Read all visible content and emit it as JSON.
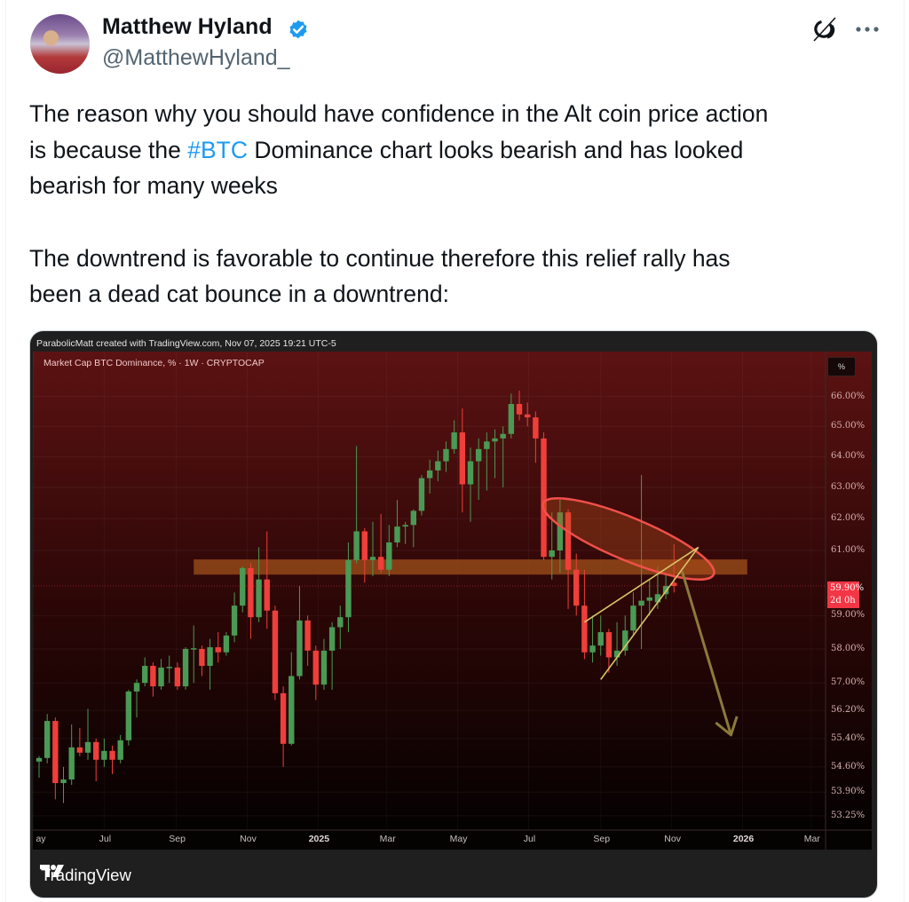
{
  "author": {
    "name": "Matthew Hyland",
    "handle": "@MatthewHyland_",
    "verified": true,
    "badge_color": "#1d9bf0"
  },
  "header_icons": [
    "grok-icon",
    "more-options-icon"
  ],
  "tweet": {
    "lines": [
      {
        "text": "The reason why you should have confidence in the Alt coin price action"
      },
      {
        "before": "is because the ",
        "hashtag": "#BTC",
        "after": " Dominance chart looks bearish and has looked"
      },
      {
        "text": "bearish for many weeks"
      },
      {
        "text": "The downtrend is favorable to continue therefore this relief rally has"
      },
      {
        "text": "been a dead cat bounce in a downtrend:"
      }
    ],
    "hashtag_color": "#1d9bf0"
  },
  "chart_image": {
    "attribution": "ParabolicMatt created with TradingView.com, Nov 07, 2025 19:21 UTC-5",
    "symbol_line": "Market Cap BTC Dominance, % · 1W · CRYPTOCAP",
    "scale_button": "%",
    "current_price": "59.90%",
    "countdown": "2d 0h",
    "logo_text": "TradingView",
    "colors": {
      "up": "#4a9a55",
      "down": "#ef3f3a",
      "current_label": "#f23645",
      "zone": "#a0501a",
      "ellipse": "#f0504a",
      "wedge": "#d8c46a",
      "arrow": "#8c7a3c"
    }
  },
  "chart_data": {
    "type": "candlestick",
    "title": "Market Cap BTC Dominance, % · 1W · CRYPTOCAP",
    "interval": "1W",
    "y_scale": "log",
    "ylim": [
      53.0,
      66.6
    ],
    "xlim": [
      "2024-04-29",
      "2026-03-31"
    ],
    "grid": true,
    "y_ticks": [
      "66.00%",
      "65.00%",
      "64.00%",
      "63.00%",
      "62.00%",
      "61.00%",
      "59.00%",
      "58.00%",
      "57.00%",
      "56.20%",
      "55.40%",
      "54.60%",
      "53.90%",
      "53.25%"
    ],
    "y_tick_values": [
      66,
      65,
      64,
      63,
      62,
      61,
      59,
      58,
      57,
      56.2,
      55.4,
      54.6,
      53.9,
      53.25
    ],
    "x_ticks": [
      {
        "label": "ay",
        "date": "2024-05-01",
        "year": false
      },
      {
        "label": "Jul",
        "date": "2024-07-01",
        "year": false
      },
      {
        "label": "Sep",
        "date": "2024-09-01",
        "year": false
      },
      {
        "label": "Nov",
        "date": "2024-11-01",
        "year": false
      },
      {
        "label": "2025",
        "date": "2025-01-01",
        "year": true
      },
      {
        "label": "Mar",
        "date": "2025-03-01",
        "year": false
      },
      {
        "label": "May",
        "date": "2025-05-01",
        "year": false
      },
      {
        "label": "Jul",
        "date": "2025-07-01",
        "year": false
      },
      {
        "label": "Sep",
        "date": "2025-09-01",
        "year": false
      },
      {
        "label": "Nov",
        "date": "2025-11-01",
        "year": false
      },
      {
        "label": "2026",
        "date": "2026-01-01",
        "year": true
      },
      {
        "label": "Mar",
        "date": "2026-03-01",
        "year": false
      }
    ],
    "candles_format": [
      "date",
      "open",
      "high",
      "low",
      "close"
    ],
    "candles": [
      [
        "2024-05-06",
        54.75,
        54.9,
        54.3,
        54.85
      ],
      [
        "2024-05-13",
        54.85,
        56.1,
        54.7,
        55.9
      ],
      [
        "2024-05-20",
        55.9,
        56.0,
        53.7,
        54.15
      ],
      [
        "2024-05-27",
        54.15,
        54.6,
        53.6,
        54.25
      ],
      [
        "2024-06-03",
        54.25,
        55.8,
        54.1,
        55.15
      ],
      [
        "2024-06-10",
        55.15,
        55.7,
        54.9,
        55.0
      ],
      [
        "2024-06-17",
        55.0,
        56.25,
        54.8,
        55.3
      ],
      [
        "2024-06-24",
        55.3,
        55.4,
        54.2,
        54.8
      ],
      [
        "2024-07-01",
        54.8,
        55.4,
        54.6,
        55.05
      ],
      [
        "2024-07-08",
        55.05,
        55.2,
        54.4,
        54.8
      ],
      [
        "2024-07-15",
        54.8,
        55.5,
        54.7,
        55.35
      ],
      [
        "2024-07-22",
        55.35,
        56.8,
        55.2,
        56.75
      ],
      [
        "2024-07-29",
        56.75,
        57.1,
        56.0,
        57.0
      ],
      [
        "2024-08-05",
        57.0,
        57.75,
        56.9,
        57.5
      ],
      [
        "2024-08-12",
        57.5,
        57.6,
        56.6,
        56.9
      ],
      [
        "2024-08-19",
        56.9,
        57.7,
        56.8,
        57.45
      ],
      [
        "2024-08-26",
        57.45,
        57.8,
        57.0,
        57.47
      ],
      [
        "2024-09-02",
        57.45,
        57.6,
        56.8,
        56.9
      ],
      [
        "2024-09-09",
        56.9,
        58.05,
        56.8,
        58.0
      ],
      [
        "2024-09-16",
        58.0,
        58.7,
        57.0,
        58.02
      ],
      [
        "2024-09-23",
        58.0,
        58.1,
        57.2,
        57.5
      ],
      [
        "2024-09-30",
        57.5,
        58.3,
        56.8,
        58.05
      ],
      [
        "2024-10-07",
        58.05,
        58.5,
        57.6,
        57.9
      ],
      [
        "2024-10-14",
        57.9,
        58.5,
        57.8,
        58.4
      ],
      [
        "2024-10-21",
        58.4,
        59.7,
        58.2,
        59.3
      ],
      [
        "2024-10-28",
        59.3,
        60.5,
        59.1,
        60.45
      ],
      [
        "2024-11-04",
        60.45,
        60.6,
        58.3,
        58.95
      ],
      [
        "2024-11-11",
        58.95,
        61.1,
        58.8,
        60.1
      ],
      [
        "2024-11-18",
        60.1,
        61.6,
        58.6,
        59.15
      ],
      [
        "2024-11-25",
        59.15,
        59.3,
        56.5,
        56.7
      ],
      [
        "2024-12-02",
        56.7,
        56.9,
        54.6,
        55.25
      ],
      [
        "2024-12-09",
        55.25,
        57.9,
        55.2,
        57.2
      ],
      [
        "2024-12-16",
        57.2,
        59.9,
        57.1,
        58.85
      ],
      [
        "2024-12-23",
        58.85,
        59.0,
        57.5,
        57.95
      ],
      [
        "2024-12-30",
        57.95,
        58.1,
        56.5,
        56.95
      ],
      [
        "2025-01-06",
        56.95,
        58.3,
        56.8,
        57.95
      ],
      [
        "2025-01-13",
        57.95,
        58.8,
        56.8,
        58.65
      ],
      [
        "2025-01-20",
        58.65,
        59.3,
        58.0,
        58.95
      ],
      [
        "2025-01-27",
        58.95,
        61.25,
        58.5,
        60.7
      ],
      [
        "2025-02-03",
        60.7,
        64.35,
        60.6,
        61.6
      ],
      [
        "2025-02-10",
        61.6,
        61.7,
        60.0,
        60.7
      ],
      [
        "2025-02-17",
        60.7,
        61.9,
        60.2,
        60.8
      ],
      [
        "2025-02-24",
        60.8,
        62.15,
        60.3,
        60.4
      ],
      [
        "2025-03-03",
        60.4,
        61.8,
        60.2,
        61.25
      ],
      [
        "2025-03-10",
        61.25,
        62.6,
        61.1,
        61.75
      ],
      [
        "2025-03-17",
        61.75,
        61.9,
        61.2,
        61.8
      ],
      [
        "2025-03-24",
        61.8,
        62.3,
        61.1,
        62.25
      ],
      [
        "2025-03-31",
        62.25,
        63.4,
        62.1,
        63.3
      ],
      [
        "2025-04-07",
        63.3,
        63.9,
        62.8,
        63.55
      ],
      [
        "2025-04-14",
        63.55,
        64.2,
        63.2,
        63.85
      ],
      [
        "2025-04-21",
        63.85,
        64.5,
        63.5,
        64.25
      ],
      [
        "2025-04-28",
        64.25,
        65.2,
        64.1,
        64.8
      ],
      [
        "2025-05-05",
        64.8,
        65.6,
        62.2,
        63.1
      ],
      [
        "2025-05-12",
        63.1,
        64.3,
        61.9,
        63.85
      ],
      [
        "2025-05-19",
        63.85,
        64.6,
        62.6,
        64.25
      ],
      [
        "2025-05-26",
        64.25,
        64.8,
        62.9,
        64.5
      ],
      [
        "2025-06-02",
        64.5,
        64.9,
        63.3,
        64.6
      ],
      [
        "2025-06-09",
        64.6,
        65.0,
        63.0,
        64.75
      ],
      [
        "2025-06-16",
        64.75,
        66.1,
        64.6,
        65.75
      ],
      [
        "2025-06-23",
        65.75,
        66.2,
        65.2,
        65.4
      ],
      [
        "2025-06-30",
        65.4,
        65.8,
        65.0,
        65.3
      ],
      [
        "2025-07-07",
        65.3,
        65.5,
        63.8,
        64.6
      ],
      [
        "2025-07-14",
        64.6,
        64.8,
        60.7,
        60.8
      ],
      [
        "2025-07-21",
        60.8,
        62.2,
        60.1,
        61.0
      ],
      [
        "2025-07-28",
        61.0,
        62.6,
        60.3,
        62.2
      ],
      [
        "2025-08-04",
        62.2,
        62.3,
        59.2,
        60.4
      ],
      [
        "2025-08-11",
        60.4,
        60.9,
        59.0,
        59.3
      ],
      [
        "2025-08-18",
        59.3,
        60.4,
        57.7,
        57.9
      ],
      [
        "2025-08-25",
        57.9,
        59.0,
        57.6,
        58.1
      ],
      [
        "2025-09-01",
        58.1,
        59.0,
        57.8,
        58.5
      ],
      [
        "2025-09-08",
        58.5,
        58.6,
        57.3,
        57.75
      ],
      [
        "2025-09-15",
        57.75,
        58.8,
        57.5,
        57.95
      ],
      [
        "2025-09-22",
        57.95,
        59.0,
        57.8,
        58.55
      ],
      [
        "2025-09-29",
        58.55,
        59.7,
        58.4,
        59.3
      ],
      [
        "2025-10-06",
        59.3,
        63.4,
        58.0,
        59.45
      ],
      [
        "2025-10-13",
        59.45,
        60.1,
        59.0,
        59.55
      ],
      [
        "2025-10-20",
        59.4,
        60.5,
        59.2,
        59.65
      ],
      [
        "2025-10-27",
        59.65,
        60.3,
        59.5,
        59.9
      ],
      [
        "2025-11-03",
        60.0,
        61.2,
        59.7,
        59.9
      ]
    ],
    "annotations": {
      "resistance_zone": {
        "from": "2024-09-16",
        "to": "2026-01-05",
        "low": 60.25,
        "high": 60.72
      },
      "rising_wedge": {
        "upper": [
          [
            "2025-08-18",
            58.8
          ],
          [
            "2025-11-24",
            61.1
          ]
        ],
        "lower": [
          [
            "2025-09-01",
            57.1
          ],
          [
            "2025-11-24",
            61.1
          ]
        ]
      },
      "down_arrow": {
        "from": [
          "2025-11-10",
          60.35
        ],
        "to": [
          "2025-12-22",
          55.5
        ]
      },
      "highlight_ellipse": true
    }
  }
}
